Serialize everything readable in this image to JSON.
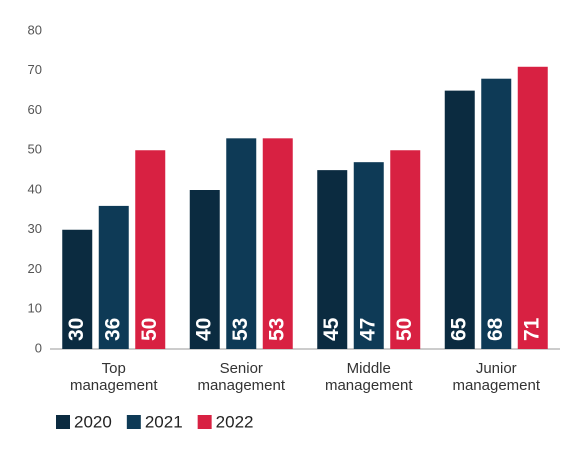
{
  "chart_data": {
    "type": "bar",
    "categories": [
      "Top management",
      "Senior management",
      "Middle management",
      "Junior management"
    ],
    "series": [
      {
        "name": "2020",
        "color": "#0b2b40",
        "values": [
          30,
          40,
          45,
          65
        ]
      },
      {
        "name": "2021",
        "color": "#0e3a56",
        "values": [
          36,
          53,
          47,
          68
        ]
      },
      {
        "name": "2022",
        "color": "#d82142",
        "values": [
          50,
          53,
          50,
          71
        ]
      }
    ],
    "ylim": [
      0,
      80
    ],
    "yticks": [
      0,
      10,
      20,
      30,
      40,
      50,
      60,
      70,
      80
    ]
  }
}
